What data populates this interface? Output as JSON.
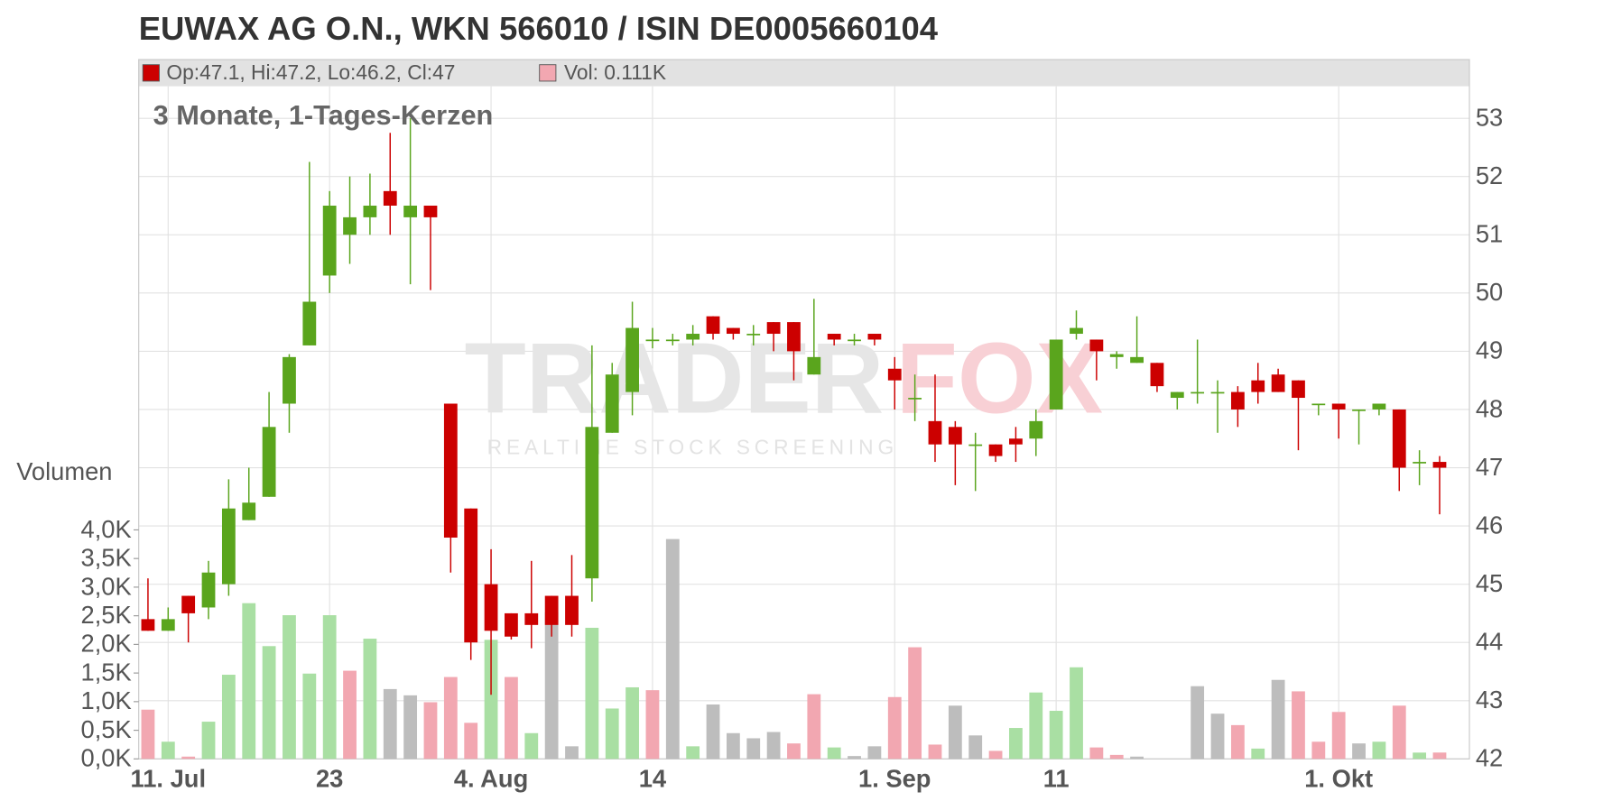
{
  "chart_data": {
    "type": "candlestick",
    "title": "EUWAX AG O.N., WKN 566010 / ISIN DE0005660104",
    "subtitle": "3 Monate, 1-Tages-Kerzen",
    "legend": {
      "ohlc": "Op:47.1, Hi:47.2, Lo:46.2, Cl:47",
      "volume": "Vol: 0.111K",
      "ohlc_color": "#cc0000",
      "volume_color": "#f2a7b1"
    },
    "watermark": {
      "words": [
        "TRADER",
        "FOX"
      ],
      "tagline": "REALTIME STOCK SCREENING"
    },
    "grid": true,
    "up_color": "#5aa51d",
    "down_color": "#cc0000",
    "categories": [
      null,
      "11. Jul",
      null,
      null,
      null,
      null,
      null,
      null,
      null,
      "23",
      null,
      null,
      null,
      null,
      null,
      null,
      null,
      "4. Aug",
      null,
      null,
      null,
      null,
      null,
      null,
      null,
      "14",
      null,
      null,
      null,
      null,
      null,
      null,
      null,
      null,
      null,
      null,
      null,
      "1. Sep",
      null,
      null,
      null,
      null,
      null,
      null,
      null,
      "11",
      null,
      null,
      null,
      null,
      null,
      null,
      null,
      null,
      null,
      null,
      null,
      null,
      null,
      "1. Okt",
      null,
      null,
      null,
      null,
      null
    ],
    "open": [
      44.4,
      44.2,
      44.8,
      44.6,
      45.0,
      46.1,
      46.5,
      48.1,
      49.1,
      50.3,
      51.0,
      51.3,
      51.75,
      51.3,
      51.5,
      48.1,
      46.3,
      45.0,
      44.5,
      44.5,
      44.8,
      44.8,
      45.1,
      47.6,
      48.3,
      49.2,
      49.2,
      49.2,
      49.6,
      49.4,
      49.3,
      49.5,
      49.5,
      48.6,
      49.3,
      49.2,
      49.3,
      48.7,
      48.2,
      47.8,
      47.7,
      47.4,
      47.4,
      47.5,
      47.5,
      48.0,
      49.3,
      49.2,
      48.9,
      48.8,
      48.8,
      48.2,
      48.3,
      48.3,
      48.3,
      48.5,
      48.6,
      48.5,
      48.1,
      48.1,
      48.0,
      48.0,
      48.0,
      47.1,
      47.1
    ],
    "high": [
      45.1,
      44.6,
      44.8,
      45.4,
      46.8,
      47.0,
      48.3,
      48.95,
      52.25,
      51.75,
      52.0,
      52.05,
      52.75,
      53.0,
      51.5,
      48.1,
      46.3,
      45.6,
      44.5,
      45.4,
      44.8,
      45.5,
      49.1,
      48.8,
      49.85,
      49.4,
      49.3,
      49.45,
      49.6,
      49.4,
      49.45,
      49.5,
      49.5,
      49.9,
      49.3,
      49.3,
      49.3,
      48.9,
      48.6,
      48.6,
      47.8,
      47.6,
      47.4,
      47.7,
      48.0,
      49.2,
      49.7,
      49.2,
      49.0,
      49.6,
      48.8,
      48.3,
      49.2,
      48.5,
      48.4,
      48.8,
      48.7,
      48.5,
      48.1,
      48.1,
      48.0,
      48.1,
      48.0,
      47.3,
      47.2
    ],
    "low": [
      44.2,
      44.2,
      44.0,
      44.4,
      44.8,
      46.1,
      46.5,
      47.6,
      49.1,
      50.0,
      50.5,
      51.0,
      51.0,
      50.15,
      50.05,
      45.2,
      43.7,
      43.1,
      44.05,
      43.9,
      44.1,
      44.1,
      44.7,
      47.6,
      47.9,
      49.05,
      49.1,
      49.1,
      49.2,
      49.2,
      49.1,
      49.0,
      48.5,
      48.6,
      49.1,
      49.1,
      49.1,
      48.0,
      47.8,
      47.1,
      46.7,
      46.6,
      47.1,
      47.1,
      47.2,
      48.0,
      49.2,
      48.5,
      48.7,
      48.8,
      48.3,
      48.0,
      48.1,
      47.6,
      47.7,
      48.1,
      48.3,
      47.3,
      47.9,
      47.5,
      47.4,
      47.9,
      46.6,
      46.7,
      46.2
    ],
    "close": [
      44.2,
      44.4,
      44.5,
      45.2,
      46.3,
      46.4,
      47.7,
      48.9,
      49.85,
      51.5,
      51.3,
      51.5,
      51.5,
      51.5,
      51.3,
      45.8,
      44.0,
      44.2,
      44.1,
      44.3,
      44.3,
      44.3,
      47.7,
      48.6,
      49.4,
      49.2,
      49.2,
      49.3,
      49.3,
      49.3,
      49.3,
      49.3,
      49.0,
      48.9,
      49.2,
      49.2,
      49.2,
      48.5,
      48.2,
      47.4,
      47.4,
      47.4,
      47.2,
      47.4,
      47.8,
      49.2,
      49.4,
      49.0,
      48.95,
      48.9,
      48.4,
      48.3,
      48.3,
      48.3,
      48.0,
      48.3,
      48.3,
      48.2,
      48.1,
      48.0,
      48.0,
      48.1,
      47.0,
      47.1,
      47.0
    ],
    "ylim": [
      42,
      53.55
    ],
    "yticks": [
      42,
      43,
      44,
      45,
      46,
      47,
      48,
      49,
      50,
      51,
      52,
      53
    ],
    "volume": {
      "name": "Volumen",
      "axis": "y2",
      "values": [
        0.86,
        0.3,
        0.04,
        0.65,
        1.47,
        2.72,
        1.97,
        2.51,
        1.49,
        2.51,
        1.54,
        2.1,
        1.22,
        1.11,
        0.99,
        1.43,
        0.63,
        2.08,
        1.43,
        0.45,
        2.56,
        0.22,
        2.29,
        0.88,
        1.25,
        1.2,
        3.84,
        0.22,
        0.95,
        0.45,
        0.36,
        0.47,
        0.27,
        1.13,
        0.2,
        0.05,
        0.22,
        1.08,
        1.95,
        0.25,
        0.93,
        0.41,
        0.14,
        0.54,
        1.16,
        0.84,
        1.6,
        0.2,
        0.07,
        0.04,
        0,
        0,
        1.27,
        0.79,
        0.59,
        0.18,
        1.38,
        1.18,
        0.3,
        0.82,
        0.27,
        0.3,
        0.93,
        0.11,
        0.111
      ],
      "colors": [
        "#f2a7b1",
        "#a9dfa3",
        "#f2a7b1",
        "#a9dfa3",
        "#a9dfa3",
        "#a9dfa3",
        "#a9dfa3",
        "#a9dfa3",
        "#a9dfa3",
        "#a9dfa3",
        "#f2a7b1",
        "#a9dfa3",
        "#bdbdbd",
        "#bdbdbd",
        "#f2a7b1",
        "#f2a7b1",
        "#f2a7b1",
        "#a9dfa3",
        "#f2a7b1",
        "#a9dfa3",
        "#bdbdbd",
        "#bdbdbd",
        "#a9dfa3",
        "#a9dfa3",
        "#a9dfa3",
        "#f2a7b1",
        "#bdbdbd",
        "#a9dfa3",
        "#bdbdbd",
        "#bdbdbd",
        "#bdbdbd",
        "#bdbdbd",
        "#f2a7b1",
        "#f2a7b1",
        "#a9dfa3",
        "#bdbdbd",
        "#bdbdbd",
        "#f2a7b1",
        "#f2a7b1",
        "#f2a7b1",
        "#bdbdbd",
        "#bdbdbd",
        "#f2a7b1",
        "#a9dfa3",
        "#a9dfa3",
        "#a9dfa3",
        "#a9dfa3",
        "#f2a7b1",
        "#f2a7b1",
        "#bdbdbd",
        "#bdbdbd",
        "#bdbdbd",
        "#bdbdbd",
        "#bdbdbd",
        "#f2a7b1",
        "#a9dfa3",
        "#bdbdbd",
        "#f2a7b1",
        "#f2a7b1",
        "#f2a7b1",
        "#bdbdbd",
        "#a9dfa3",
        "#f2a7b1",
        "#a9dfa3",
        "#f2a7b1"
      ]
    },
    "y2lim": [
      0,
      4.0
    ],
    "y2ticks": [
      {
        "value": 0,
        "label": "0,0K"
      },
      {
        "value": 0.5,
        "label": "0,5K"
      },
      {
        "value": 1.0,
        "label": "1,0K"
      },
      {
        "value": 1.5,
        "label": "1,5K"
      },
      {
        "value": 2.0,
        "label": "2,0K"
      },
      {
        "value": 2.5,
        "label": "2,5K"
      },
      {
        "value": 3.0,
        "label": "3,0K"
      },
      {
        "value": 3.5,
        "label": "3,5K"
      },
      {
        "value": 4.0,
        "label": "4,0K"
      }
    ]
  }
}
